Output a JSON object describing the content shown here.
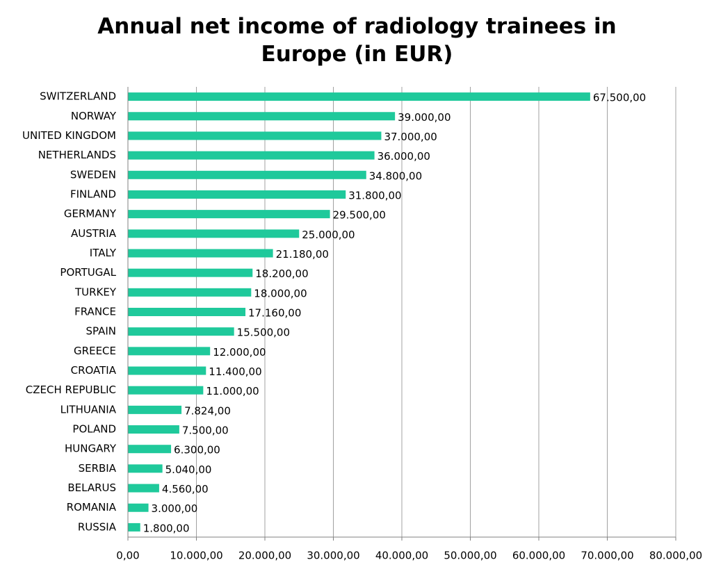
{
  "chart_data": {
    "type": "barh",
    "title": "Annual net income of radiology trainees in Europe (in EUR)",
    "categories": [
      "SWITZERLAND",
      "NORWAY",
      "UNITED KINGDOM",
      "NETHERLANDS",
      "SWEDEN",
      "FINLAND",
      "GERMANY",
      "AUSTRIA",
      "ITALY",
      "PORTUGAL",
      "TURKEY",
      "FRANCE",
      "SPAIN",
      "GREECE",
      "CROATIA",
      "CZECH REPUBLIC",
      "LITHUANIA",
      "POLAND",
      "HUNGARY",
      "SERBIA",
      "BELARUS",
      "ROMANIA",
      "RUSSIA"
    ],
    "values": [
      67500,
      39000,
      37000,
      36000,
      34800,
      31800,
      29500,
      25000,
      21180,
      18200,
      18000,
      17160,
      15500,
      12000,
      11400,
      11000,
      7824,
      7500,
      6300,
      5040,
      4560,
      3000,
      1800
    ],
    "value_labels": [
      "67.500,00",
      "39.000,00",
      "37.000,00",
      "36.000,00",
      "34.800,00",
      "31.800,00",
      "29.500,00",
      "25.000,00",
      "21.180,00",
      "18.200,00",
      "18.000,00",
      "17.160,00",
      "15.500,00",
      "12.000,00",
      "11.400,00",
      "11.000,00",
      "7.824,00",
      "7.500,00",
      "6.300,00",
      "5.040,00",
      "4.560,00",
      "3.000,00",
      "1.800,00"
    ],
    "color": "#1fc99b",
    "xlim": [
      0,
      80000
    ],
    "xticks": [
      {
        "value": 0,
        "label": "0,00"
      },
      {
        "value": 10000,
        "label": "10.000,00"
      },
      {
        "value": 20000,
        "label": "20.000,00"
      },
      {
        "value": 30000,
        "label": "30.000,00"
      },
      {
        "value": 40000,
        "label": "40.000,00"
      },
      {
        "value": 50000,
        "label": "50.000,00"
      },
      {
        "value": 60000,
        "label": "60.000,00"
      },
      {
        "value": 70000,
        "label": "70.000,00"
      },
      {
        "value": 80000,
        "label": "80.000,00"
      }
    ],
    "grid": true
  }
}
